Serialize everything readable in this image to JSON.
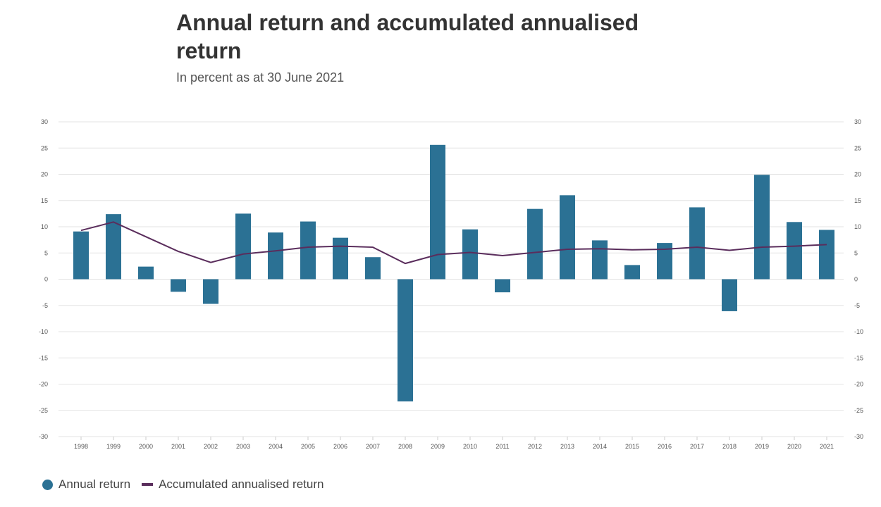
{
  "header": {
    "title": "Annual return and accumulated annualised return",
    "subtitle": "In percent as at 30 June 2021"
  },
  "legend": {
    "bar_label": "Annual return",
    "line_label": "Accumulated annualised return"
  },
  "colors": {
    "bar": "#2b7194",
    "line": "#5a2d5c",
    "grid": "#e3e3e3"
  },
  "chart_data": {
    "type": "bar",
    "title": "Annual return and accumulated annualised return",
    "subtitle": "In percent as at 30 June 2021",
    "xlabel": "",
    "ylabel": "",
    "ylim": [
      -30,
      30
    ],
    "yticks": [
      30,
      25,
      20,
      15,
      10,
      5,
      0,
      -5,
      -10,
      -15,
      -20,
      -25,
      -30
    ],
    "categories": [
      "1998",
      "1999",
      "2000",
      "2001",
      "2002",
      "2003",
      "2004",
      "2005",
      "2006",
      "2007",
      "2008",
      "2009",
      "2010",
      "2011",
      "2012",
      "2013",
      "2014",
      "2015",
      "2016",
      "2017",
      "2018",
      "2019",
      "2020",
      "2021"
    ],
    "series": [
      {
        "name": "Annual return",
        "type": "bar",
        "values": [
          9.1,
          12.4,
          2.4,
          -2.4,
          -4.7,
          12.5,
          8.9,
          11.0,
          7.9,
          4.2,
          -23.3,
          25.6,
          9.5,
          -2.5,
          13.4,
          16.0,
          7.4,
          2.7,
          6.9,
          13.7,
          -6.1,
          19.9,
          10.9,
          9.4
        ],
        "color": "#2b7194"
      },
      {
        "name": "Accumulated annualised return",
        "type": "line",
        "values": [
          9.3,
          10.9,
          8.1,
          5.3,
          3.2,
          4.8,
          5.4,
          6.1,
          6.3,
          6.1,
          3.0,
          4.7,
          5.1,
          4.5,
          5.1,
          5.7,
          5.8,
          5.6,
          5.7,
          6.1,
          5.5,
          6.1,
          6.3,
          6.6
        ],
        "color": "#5a2d5c"
      }
    ],
    "grid": true,
    "legend_position": "bottom-left"
  }
}
